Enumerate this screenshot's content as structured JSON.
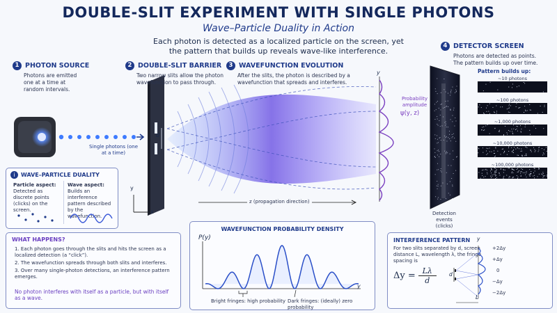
{
  "header": {
    "title": "DOUBLE-SLIT EXPERIMENT WITH SINGLE PHOTONS",
    "subtitle": "Wave–Particle Duality in Action",
    "intro": "Each photon is detected as a localized particle on the screen, yet the pattern that builds up reveals wave-like interference."
  },
  "steps": [
    {
      "num": "1",
      "title": "PHOTON SOURCE",
      "desc": "Photons are emitted one at a time at random intervals."
    },
    {
      "num": "2",
      "title": "DOUBLE-SLIT BARRIER",
      "desc": "Two narrow slits allow the photon wavefunction to pass through."
    },
    {
      "num": "3",
      "title": "WAVEFUNCTION EVOLUTION",
      "desc": "After the slits, the photon is described by a wavefunction that spreads and interferes."
    },
    {
      "num": "4",
      "title": "DETECTOR SCREEN",
      "desc": "Photons are detected as points. The pattern builds up over time."
    }
  ],
  "labels": {
    "single_photons": "Single photons (one at a time)",
    "slit_d": "d",
    "axis_y": "y",
    "axis_x": "x",
    "axis_z": "z (propagation direction)",
    "prob_amp": "Probability amplitude",
    "psi": "ψ(y, z)",
    "detection_events": "Detection events (clicks)"
  },
  "buildup": {
    "title": "Pattern builds up:",
    "items": [
      "~10 photons",
      "~100 photons",
      "~1,000 photons",
      "~10,000 photons",
      "~100,000 photons"
    ],
    "counts": [
      10,
      100,
      1000,
      10000,
      100000
    ]
  },
  "duality": {
    "title": "WAVE–PARTICLE DUALITY",
    "particle_head": "Particle aspect:",
    "particle_text": "Detected as discrete points (clicks) on the screen.",
    "wave_head": "Wave aspect:",
    "wave_text": "Builds an interference pattern described by the wavefunction."
  },
  "what_happens": {
    "title": "WHAT HAPPENS?",
    "items": [
      "1. Each photon goes through the slits and hits the screen as a localized detection (a “click”).",
      "2. The wavefunction spreads through both slits and interferes.",
      "3. Over many single-photon detections, an interference pattern emerges."
    ],
    "note": "No photon interferes with itself as a particle, but with itself as a wave."
  },
  "density": {
    "title": "WAVEFUNCTION PROBABILITY DENSITY",
    "ylabel": "P(y)",
    "xlabel": "y",
    "bright": "Bright fringes: high probability",
    "dark": "Dark fringes: (ideally) zero probability"
  },
  "interference": {
    "title": "INTERFERENCE PATTERN",
    "text": "For two slits separated by d, screen distance L, wavelength λ, the fringe spacing is",
    "formula_lhs": "Δy =",
    "formula_num": "Lλ",
    "formula_den": "d",
    "d": "d",
    "L": "L",
    "y": "y",
    "ticks": [
      "+2Δy",
      "+Δy",
      "0",
      "−Δy",
      "−2Δy"
    ]
  },
  "colors": {
    "accent": "#1f3a8a",
    "wave": "#6a3fd6",
    "photon": "#3d7bff"
  }
}
